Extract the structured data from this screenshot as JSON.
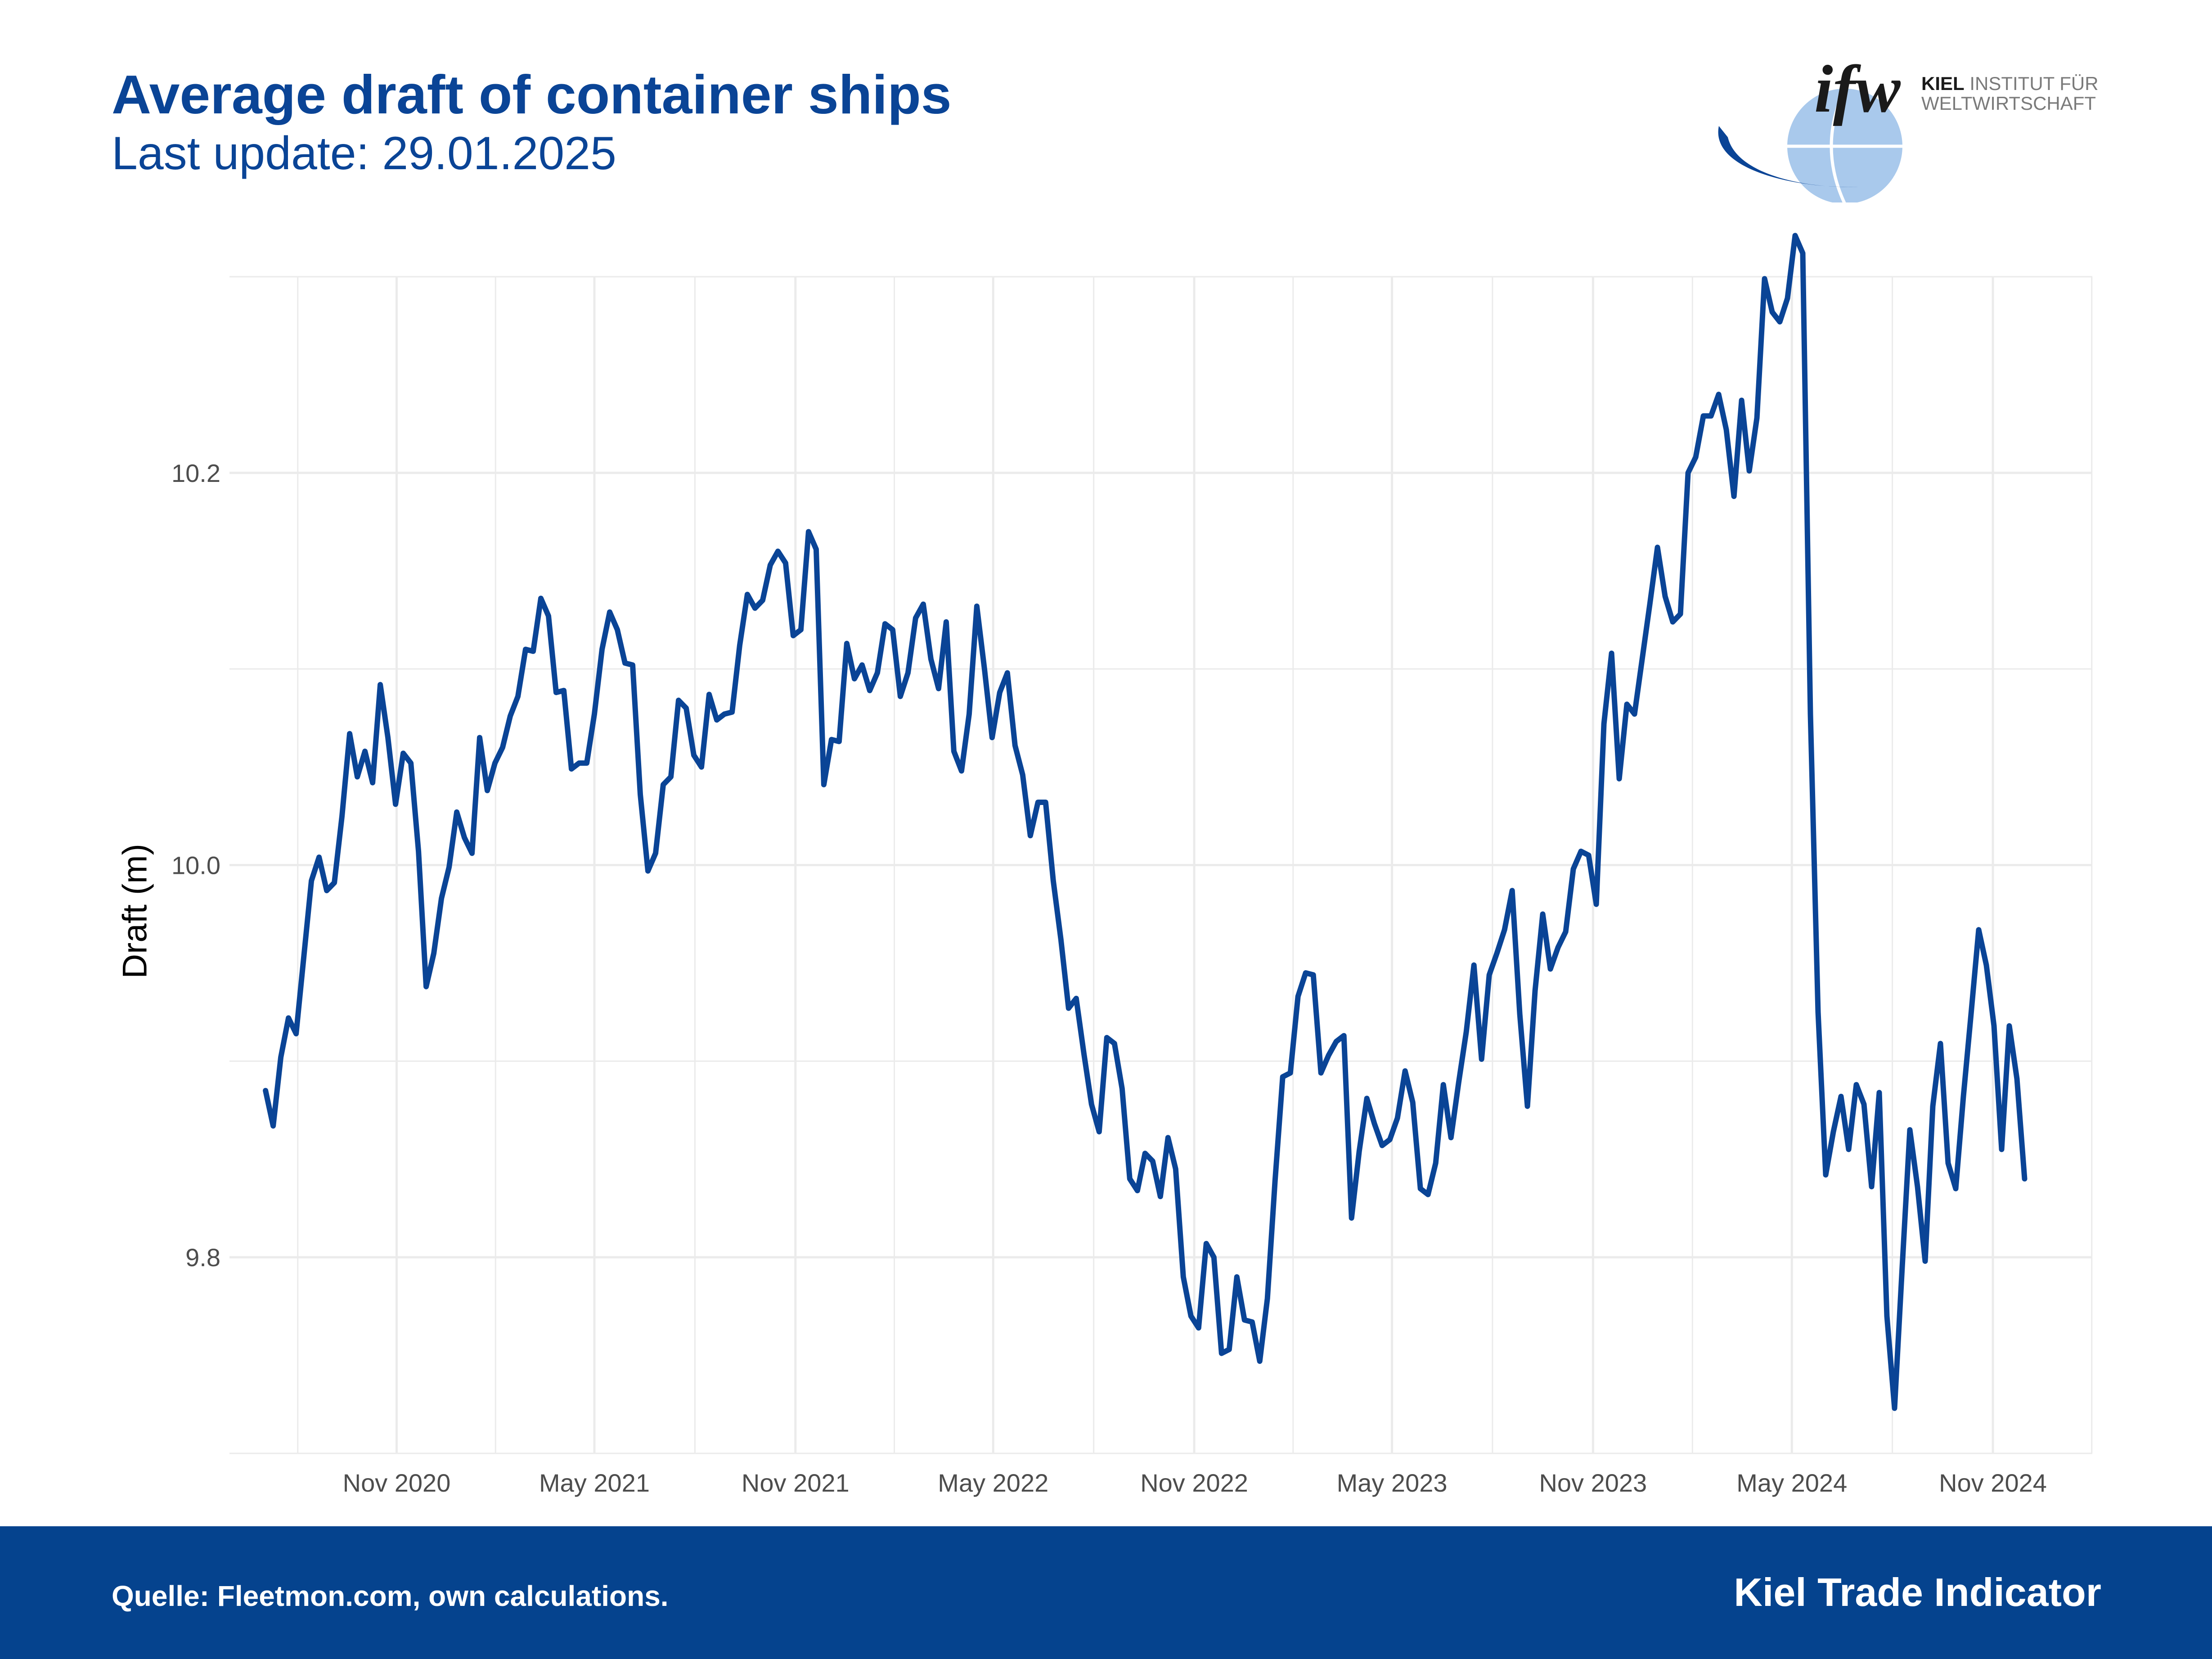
{
  "header": {
    "title": "Average draft of container ships",
    "subtitle": "Last update: 29.01.2025"
  },
  "logo": {
    "wordmark": "ifw",
    "line1_bold": "KIEL",
    "line1_rest": " INSTITUT FÜR",
    "line2": "WELTWIRTSCHAFT"
  },
  "footer": {
    "source": "Quelle: Fleetmon.com, own calculations.",
    "brand": "Kiel Trade Indicator"
  },
  "colors": {
    "line": "#0a4496",
    "title": "#0a4496",
    "footer_bg": "#05438e",
    "grid": "#ebebeb"
  },
  "chart_data": {
    "type": "line",
    "title": "Average draft of container ships",
    "xlabel": "",
    "ylabel": "Draft (m)",
    "ylim": [
      9.7,
      10.3
    ],
    "y_ticks": [
      9.8,
      10.0,
      10.2
    ],
    "y_tick_labels": [
      "9.8",
      "10.0",
      "10.2"
    ],
    "x_start": "2020-06-01",
    "x_end": "2025-01-31",
    "x_ticks": [
      "2020-11-01",
      "2021-05-01",
      "2021-11-01",
      "2022-05-01",
      "2022-11-01",
      "2023-05-01",
      "2023-11-01",
      "2024-05-01",
      "2024-11-01"
    ],
    "x_tick_labels": [
      "Nov 2020",
      "May 2021",
      "Nov 2021",
      "May 2022",
      "Nov 2022",
      "May 2023",
      "Nov 2023",
      "May 2024",
      "Nov 2024"
    ],
    "grid": true,
    "series": [
      {
        "name": "Average draft",
        "start": "2020-07-04",
        "step_days": 7,
        "values": [
          9.885,
          9.867,
          9.902,
          9.922,
          9.914,
          9.953,
          9.992,
          10.004,
          9.987,
          9.991,
          10.025,
          10.067,
          10.045,
          10.058,
          10.042,
          10.092,
          10.065,
          10.031,
          10.057,
          10.052,
          10.007,
          9.938,
          9.955,
          9.983,
          9.999,
          10.027,
          10.014,
          10.006,
          10.065,
          10.038,
          10.052,
          10.06,
          10.076,
          10.086,
          10.11,
          10.109,
          10.136,
          10.127,
          10.088,
          10.089,
          10.049,
          10.052,
          10.052,
          10.077,
          10.11,
          10.129,
          10.12,
          10.103,
          10.102,
          10.036,
          9.997,
          10.006,
          10.041,
          10.045,
          10.084,
          10.08,
          10.056,
          10.05,
          10.087,
          10.074,
          10.077,
          10.078,
          10.112,
          10.138,
          10.131,
          10.135,
          10.153,
          10.16,
          10.154,
          10.117,
          10.12,
          10.17,
          10.161,
          10.041,
          10.064,
          10.063,
          10.113,
          10.095,
          10.102,
          10.089,
          10.098,
          10.123,
          10.12,
          10.086,
          10.098,
          10.126,
          10.133,
          10.105,
          10.09,
          10.124,
          10.058,
          10.048,
          10.077,
          10.132,
          10.1,
          10.065,
          10.088,
          10.098,
          10.061,
          10.046,
          10.015,
          10.032,
          10.032,
          9.992,
          9.962,
          9.927,
          9.932,
          9.904,
          9.878,
          9.864,
          9.912,
          9.909,
          9.886,
          9.84,
          9.834,
          9.853,
          9.849,
          9.831,
          9.861,
          9.845,
          9.79,
          9.77,
          9.764,
          9.807,
          9.8,
          9.751,
          9.753,
          9.79,
          9.768,
          9.767,
          9.747,
          9.779,
          9.839,
          9.892,
          9.894,
          9.933,
          9.945,
          9.944,
          9.894,
          9.903,
          9.91,
          9.913,
          9.82,
          9.854,
          9.881,
          9.868,
          9.857,
          9.86,
          9.871,
          9.895,
          9.879,
          9.835,
          9.832,
          9.848,
          9.888,
          9.861,
          9.889,
          9.915,
          9.949,
          9.901,
          9.944,
          9.955,
          9.967,
          9.987,
          9.924,
          9.877,
          9.936,
          9.975,
          9.947,
          9.958,
          9.966,
          9.998,
          10.007,
          10.005,
          9.98,
          10.072,
          10.108,
          10.044,
          10.082,
          10.077,
          10.105,
          10.133,
          10.162,
          10.137,
          10.124,
          10.128,
          10.2,
          10.208,
          10.229,
          10.229,
          10.24,
          10.222,
          10.188,
          10.237,
          10.201,
          10.228,
          10.299,
          10.282,
          10.277,
          10.289,
          10.321,
          10.312,
          10.077,
          9.925,
          9.842,
          9.864,
          9.882,
          9.855,
          9.888,
          9.878,
          9.836,
          9.884,
          9.77,
          9.723,
          9.795,
          9.865,
          9.836,
          9.798,
          9.877,
          9.909,
          9.848,
          9.835,
          9.882,
          9.924,
          9.967,
          9.949,
          9.918,
          9.855,
          9.918,
          9.891,
          9.84
        ]
      }
    ]
  }
}
